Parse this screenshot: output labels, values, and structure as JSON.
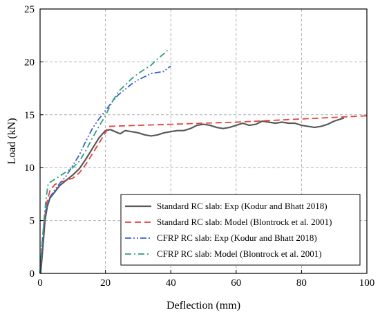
{
  "chart_data": {
    "type": "line",
    "xlabel": "Deflection (mm)",
    "ylabel": "Load (kN)",
    "xlim": [
      0,
      100
    ],
    "ylim": [
      0,
      25
    ],
    "xticks": [
      0,
      20,
      40,
      60,
      80,
      100
    ],
    "yticks": [
      0,
      5,
      10,
      15,
      20,
      25
    ],
    "grid": true,
    "legend_position": "bottom-right",
    "series": [
      {
        "name": "Standard RC slab: Exp (Kodur and Bhatt 2018)",
        "color": "#595959",
        "style": "solid",
        "points": [
          [
            0.2,
            0
          ],
          [
            0.6,
            1.5
          ],
          [
            1,
            3
          ],
          [
            1.5,
            5
          ],
          [
            2.2,
            6.3
          ],
          [
            3,
            7.1
          ],
          [
            4.5,
            7.7
          ],
          [
            6,
            8.3
          ],
          [
            8,
            8.8
          ],
          [
            10,
            9.3
          ],
          [
            12,
            9.9
          ],
          [
            14,
            10.8
          ],
          [
            16,
            11.8
          ],
          [
            18,
            12.8
          ],
          [
            20,
            13.5
          ],
          [
            21.5,
            13.6
          ],
          [
            23,
            13.4
          ],
          [
            24.5,
            13.2
          ],
          [
            26,
            13.5
          ],
          [
            28,
            13.4
          ],
          [
            30,
            13.3
          ],
          [
            32,
            13.1
          ],
          [
            34,
            13.0
          ],
          [
            36,
            13.1
          ],
          [
            38,
            13.3
          ],
          [
            40,
            13.4
          ],
          [
            42,
            13.5
          ],
          [
            44,
            13.5
          ],
          [
            46,
            13.7
          ],
          [
            48,
            14.0
          ],
          [
            50,
            14.1
          ],
          [
            52,
            14.0
          ],
          [
            54,
            13.8
          ],
          [
            56,
            13.7
          ],
          [
            58,
            13.8
          ],
          [
            60,
            14.0
          ],
          [
            62,
            14.2
          ],
          [
            64,
            14.0
          ],
          [
            66,
            14.1
          ],
          [
            68,
            14.4
          ],
          [
            70,
            14.3
          ],
          [
            72,
            14.2
          ],
          [
            74,
            14.3
          ],
          [
            76,
            14.2
          ],
          [
            78,
            14.2
          ],
          [
            80,
            14.0
          ],
          [
            82,
            13.9
          ],
          [
            84,
            13.8
          ],
          [
            86,
            13.9
          ],
          [
            88,
            14.1
          ],
          [
            90,
            14.4
          ],
          [
            92,
            14.6
          ],
          [
            93,
            14.7
          ]
        ]
      },
      {
        "name": "Standard RC slab: Model (Blontrock et al. 2001)",
        "color": "#e8403a",
        "style": "dashed",
        "points": [
          [
            0,
            0
          ],
          [
            0.6,
            2.5
          ],
          [
            1.3,
            5
          ],
          [
            2,
            6.6
          ],
          [
            3,
            7.8
          ],
          [
            4.5,
            8.4
          ],
          [
            6,
            8.6
          ],
          [
            8,
            8.8
          ],
          [
            10,
            9.0
          ],
          [
            12,
            9.5
          ],
          [
            14,
            10.3
          ],
          [
            16,
            11.3
          ],
          [
            18,
            12.3
          ],
          [
            20,
            13.3
          ],
          [
            21,
            13.9
          ],
          [
            30,
            14.0
          ],
          [
            40,
            14.1
          ],
          [
            50,
            14.2
          ],
          [
            60,
            14.3
          ],
          [
            70,
            14.45
          ],
          [
            80,
            14.6
          ],
          [
            90,
            14.75
          ],
          [
            100,
            14.9
          ]
        ]
      },
      {
        "name": "CFRP RC slab: Exp (Kodur and Bhatt 2018)",
        "color": "#3a5fd0",
        "style": "dashdotdot",
        "points": [
          [
            0,
            0
          ],
          [
            0.7,
            3
          ],
          [
            1.3,
            5
          ],
          [
            2,
            6.3
          ],
          [
            3,
            7.2
          ],
          [
            4.5,
            7.9
          ],
          [
            6,
            8.5
          ],
          [
            8,
            9.2
          ],
          [
            10,
            10.2
          ],
          [
            12,
            11.2
          ],
          [
            14,
            12.5
          ],
          [
            16,
            13.7
          ],
          [
            18,
            14.6
          ],
          [
            20,
            15.4
          ],
          [
            22,
            16.2
          ],
          [
            24,
            16.9
          ],
          [
            26,
            17.4
          ],
          [
            28,
            17.9
          ],
          [
            30,
            18.3
          ],
          [
            32,
            18.6
          ],
          [
            34,
            18.9
          ],
          [
            36,
            19.0
          ],
          [
            38,
            19.1
          ],
          [
            39,
            19.4
          ],
          [
            40,
            19.6
          ]
        ]
      },
      {
        "name": "CFRP RC slab: Model (Blontrock et al. 2001)",
        "color": "#2e9c7a",
        "style": "dashdot",
        "points": [
          [
            0,
            0
          ],
          [
            0.5,
            2.5
          ],
          [
            1.2,
            5
          ],
          [
            1.8,
            7
          ],
          [
            2.5,
            8.5
          ],
          [
            4,
            8.8
          ],
          [
            6,
            9.2
          ],
          [
            8,
            9.6
          ],
          [
            10,
            10.0
          ],
          [
            12,
            10.6
          ],
          [
            14,
            11.6
          ],
          [
            16,
            12.8
          ],
          [
            18,
            13.9
          ],
          [
            20,
            14.9
          ],
          [
            22,
            16.2
          ],
          [
            24,
            17.2
          ],
          [
            26,
            17.8
          ],
          [
            28,
            18.4
          ],
          [
            30,
            18.9
          ],
          [
            32,
            19.3
          ],
          [
            34,
            19.7
          ],
          [
            36,
            20.3
          ],
          [
            38,
            20.8
          ],
          [
            39,
            21.1
          ]
        ]
      }
    ]
  }
}
